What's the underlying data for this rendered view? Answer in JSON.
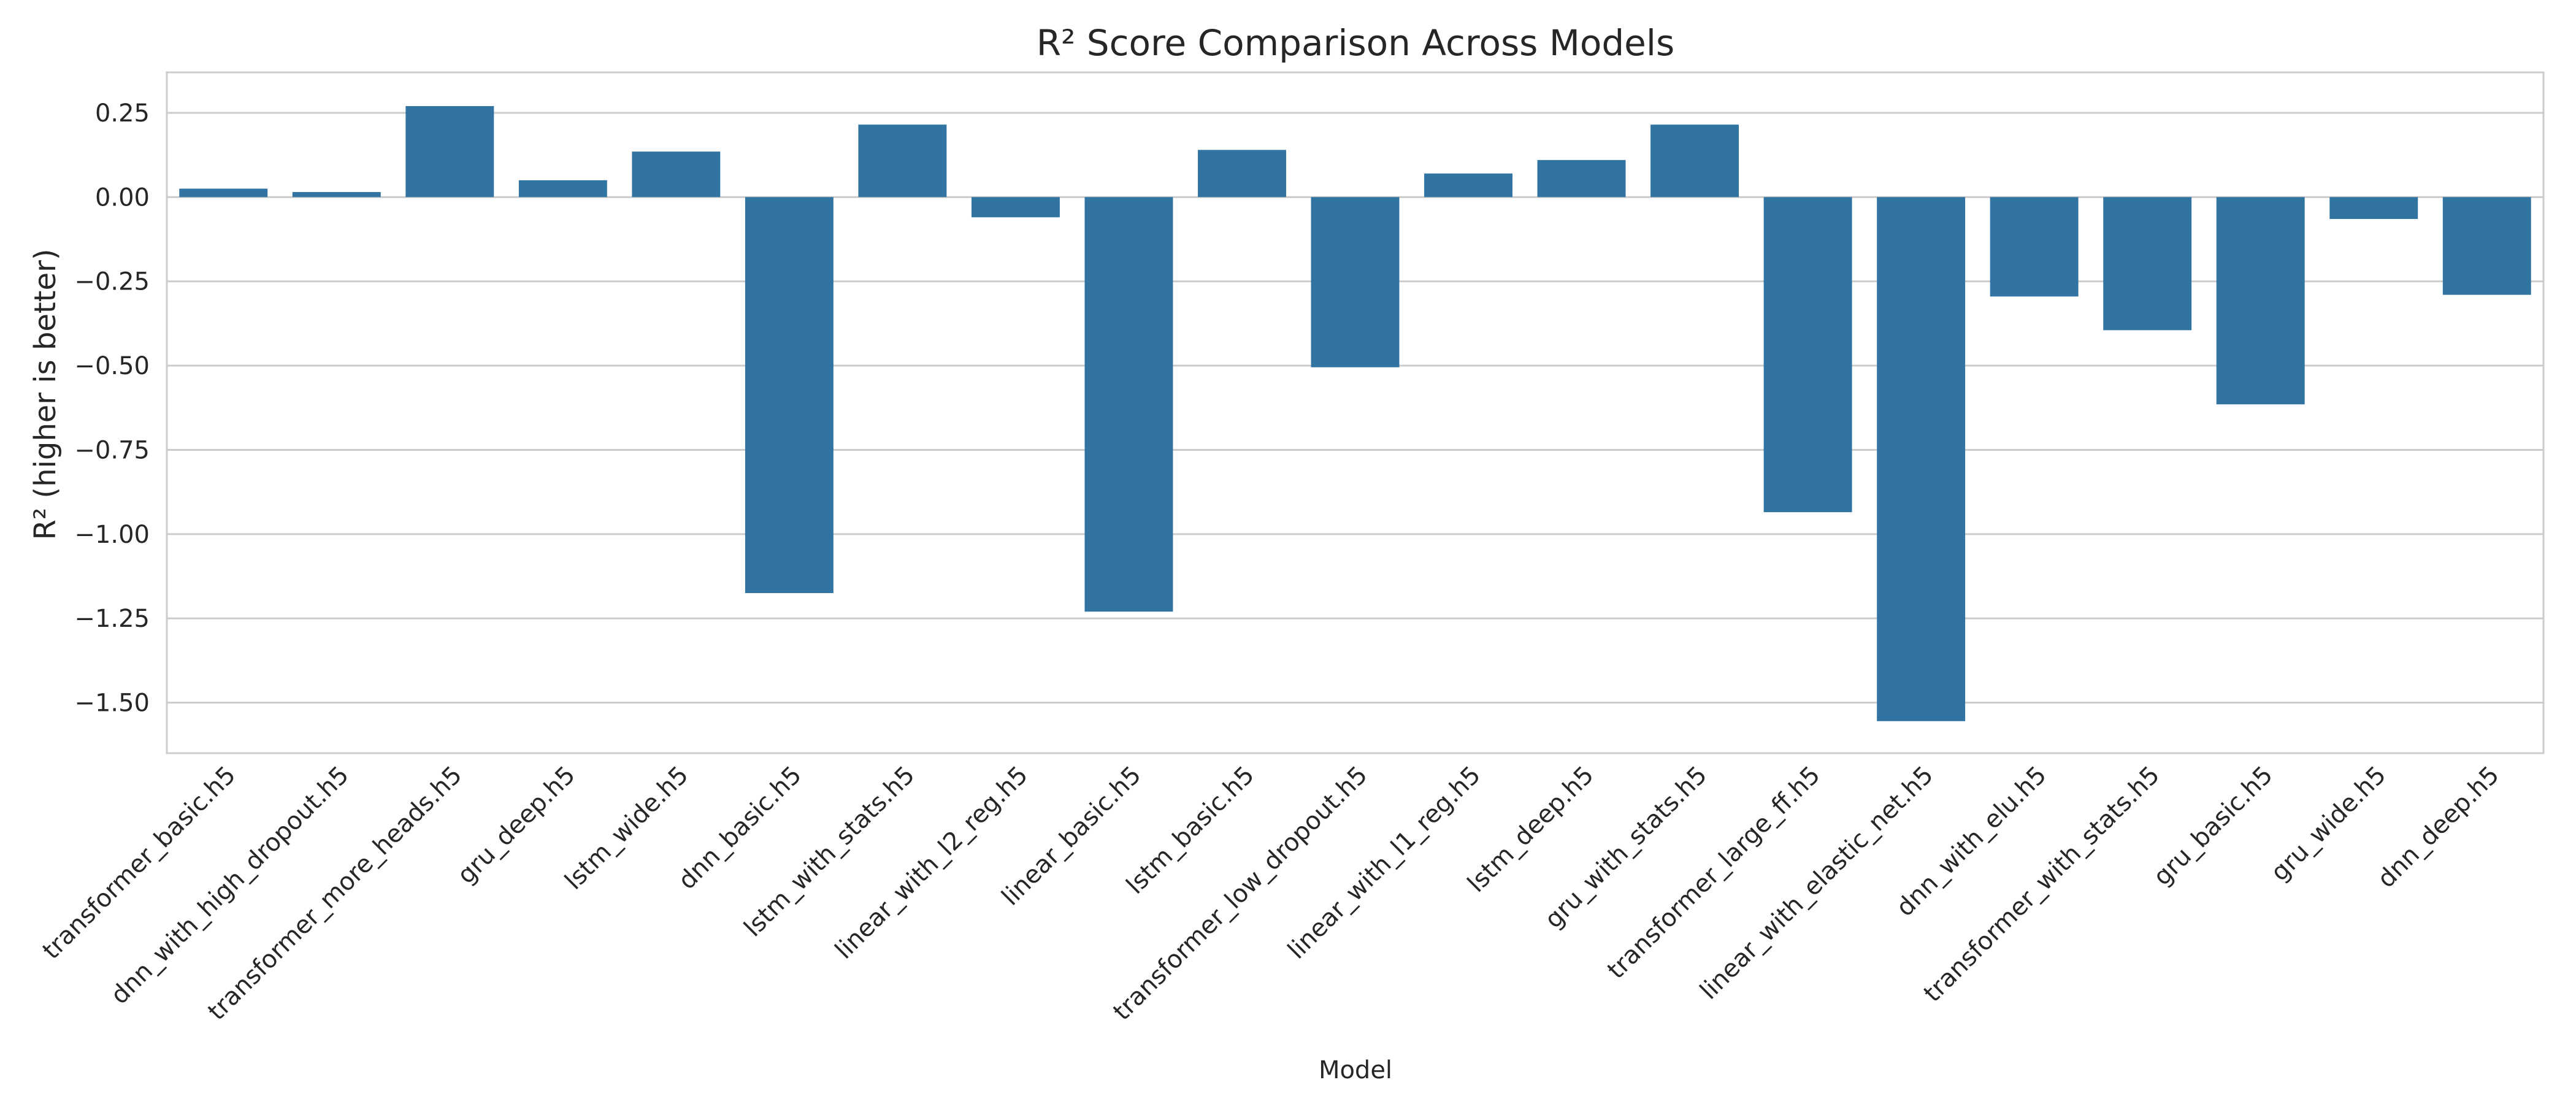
{
  "chart_data": {
    "type": "bar",
    "title": "R² Score Comparison Across Models",
    "xlabel": "Model",
    "ylabel": "R² (higher is better)",
    "ylim": [
      -1.65,
      0.37
    ],
    "yticks": [
      0.25,
      0.0,
      -0.25,
      -0.5,
      -0.75,
      -1.0,
      -1.25,
      -1.5
    ],
    "ytick_labels": [
      "0.25",
      "0.00",
      "−0.25",
      "−0.50",
      "−0.75",
      "−1.00",
      "−1.25",
      "−1.50"
    ],
    "grid": true,
    "bar_color": "#3274a1",
    "categories": [
      "transformer_basic.h5",
      "dnn_with_high_dropout.h5",
      "transformer_more_heads.h5",
      "gru_deep.h5",
      "lstm_wide.h5",
      "dnn_basic.h5",
      "lstm_with_stats.h5",
      "linear_with_l2_reg.h5",
      "linear_basic.h5",
      "lstm_basic.h5",
      "transformer_low_dropout.h5",
      "linear_with_l1_reg.h5",
      "lstm_deep.h5",
      "gru_with_stats.h5",
      "transformer_large_ff.h5",
      "linear_with_elastic_net.h5",
      "dnn_with_elu.h5",
      "transformer_with_stats.h5",
      "gru_basic.h5",
      "gru_wide.h5",
      "dnn_deep.h5"
    ],
    "values": [
      0.025,
      0.015,
      0.27,
      0.05,
      0.135,
      -1.175,
      0.215,
      -0.06,
      -1.23,
      0.14,
      -0.505,
      0.07,
      0.11,
      0.215,
      -0.935,
      -1.555,
      -0.295,
      -0.395,
      -0.615,
      -0.065,
      -0.29
    ]
  }
}
